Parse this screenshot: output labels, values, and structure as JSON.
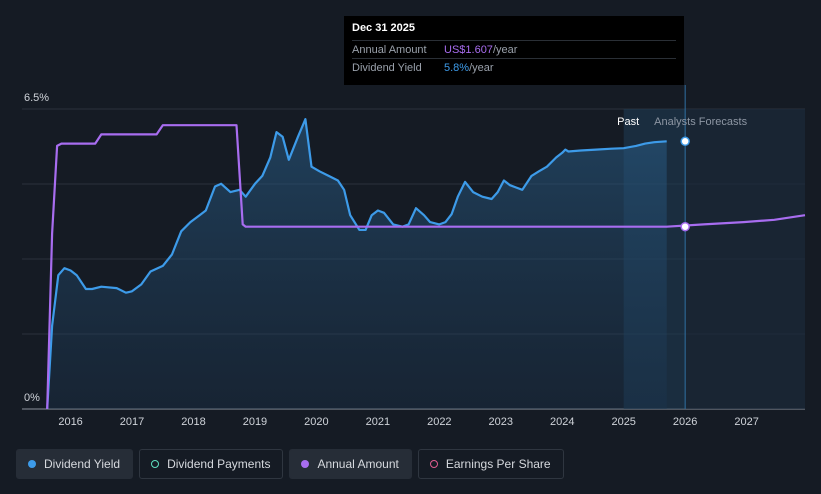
{
  "tooltip": {
    "date": "Dec 31 2025",
    "annual_label": "Annual Amount",
    "annual_value": "US$1.607",
    "annual_unit": "/year",
    "yield_label": "Dividend Yield",
    "yield_value": "5.8%",
    "yield_unit": "/year"
  },
  "regions": {
    "past": "Past",
    "forecast": "Analysts Forecasts"
  },
  "legend": [
    {
      "label": "Dividend Yield",
      "color": "#3d9be9",
      "filled": true,
      "active": true
    },
    {
      "label": "Dividend Payments",
      "color": "#5ee0c0",
      "filled": false,
      "active": false
    },
    {
      "label": "Annual Amount",
      "color": "#a86df0",
      "filled": true,
      "active": true
    },
    {
      "label": "Earnings Per Share",
      "color": "#e05c8f",
      "filled": false,
      "active": false
    }
  ],
  "chart_data": {
    "type": "line",
    "x_ticks": [
      "2016",
      "2017",
      "2018",
      "2019",
      "2020",
      "2021",
      "2022",
      "2023",
      "2024",
      "2025",
      "2026",
      "2027"
    ],
    "y_tick_labels": [
      "0%",
      "6.5%"
    ],
    "ylim": [
      0,
      6.5
    ],
    "xlim": [
      2015.6,
      2027.95
    ],
    "forecast_start": 2026.0,
    "highlight_start": 2025.0,
    "series": [
      {
        "name": "Dividend Yield",
        "color": "#3d9be9",
        "fill": true,
        "points": [
          [
            2015.62,
            0.0
          ],
          [
            2015.7,
            1.8
          ],
          [
            2015.8,
            2.9
          ],
          [
            2015.9,
            3.05
          ],
          [
            2016.0,
            3.0
          ],
          [
            2016.1,
            2.9
          ],
          [
            2016.25,
            2.6
          ],
          [
            2016.35,
            2.6
          ],
          [
            2016.5,
            2.65
          ],
          [
            2016.75,
            2.62
          ],
          [
            2016.9,
            2.52
          ],
          [
            2017.0,
            2.55
          ],
          [
            2017.15,
            2.7
          ],
          [
            2017.3,
            2.98
          ],
          [
            2017.5,
            3.1
          ],
          [
            2017.65,
            3.35
          ],
          [
            2017.8,
            3.85
          ],
          [
            2017.95,
            4.05
          ],
          [
            2018.1,
            4.2
          ],
          [
            2018.2,
            4.3
          ],
          [
            2018.35,
            4.82
          ],
          [
            2018.45,
            4.88
          ],
          [
            2018.6,
            4.7
          ],
          [
            2018.75,
            4.75
          ],
          [
            2018.85,
            4.6
          ],
          [
            2019.0,
            4.88
          ],
          [
            2019.12,
            5.05
          ],
          [
            2019.25,
            5.45
          ],
          [
            2019.35,
            6.0
          ],
          [
            2019.45,
            5.9
          ],
          [
            2019.55,
            5.4
          ],
          [
            2019.7,
            5.9
          ],
          [
            2019.82,
            6.28
          ],
          [
            2019.92,
            5.25
          ],
          [
            2020.05,
            5.15
          ],
          [
            2020.2,
            5.05
          ],
          [
            2020.35,
            4.95
          ],
          [
            2020.45,
            4.75
          ],
          [
            2020.55,
            4.2
          ],
          [
            2020.7,
            3.88
          ],
          [
            2020.8,
            3.88
          ],
          [
            2020.9,
            4.2
          ],
          [
            2021.0,
            4.3
          ],
          [
            2021.1,
            4.25
          ],
          [
            2021.25,
            4.0
          ],
          [
            2021.4,
            3.95
          ],
          [
            2021.5,
            4.0
          ],
          [
            2021.62,
            4.35
          ],
          [
            2021.75,
            4.2
          ],
          [
            2021.85,
            4.05
          ],
          [
            2022.0,
            4.0
          ],
          [
            2022.1,
            4.05
          ],
          [
            2022.2,
            4.22
          ],
          [
            2022.3,
            4.6
          ],
          [
            2022.42,
            4.92
          ],
          [
            2022.55,
            4.7
          ],
          [
            2022.7,
            4.6
          ],
          [
            2022.85,
            4.55
          ],
          [
            2022.95,
            4.7
          ],
          [
            2023.05,
            4.95
          ],
          [
            2023.15,
            4.85
          ],
          [
            2023.25,
            4.8
          ],
          [
            2023.35,
            4.75
          ],
          [
            2023.5,
            5.05
          ],
          [
            2023.62,
            5.15
          ],
          [
            2023.75,
            5.25
          ],
          [
            2023.9,
            5.45
          ],
          [
            2024.0,
            5.55
          ],
          [
            2024.05,
            5.62
          ],
          [
            2024.1,
            5.58
          ],
          [
            2024.3,
            5.6
          ],
          [
            2024.55,
            5.62
          ],
          [
            2024.8,
            5.64
          ],
          [
            2025.0,
            5.65
          ],
          [
            2025.2,
            5.7
          ],
          [
            2025.35,
            5.75
          ],
          [
            2025.5,
            5.78
          ],
          [
            2025.7,
            5.8
          ]
        ]
      },
      {
        "name": "Annual Amount",
        "color": "#a86df0",
        "fill": false,
        "points": [
          [
            2015.62,
            0.0
          ],
          [
            2015.7,
            3.8
          ],
          [
            2015.78,
            5.7
          ],
          [
            2015.85,
            5.75
          ],
          [
            2016.4,
            5.75
          ],
          [
            2016.5,
            5.95
          ],
          [
            2017.4,
            5.95
          ],
          [
            2017.5,
            6.15
          ],
          [
            2018.7,
            6.15
          ],
          [
            2018.8,
            4.0
          ],
          [
            2018.85,
            3.95
          ],
          [
            2025.7,
            3.95
          ],
          [
            2026.3,
            4.0
          ],
          [
            2026.95,
            4.05
          ],
          [
            2027.45,
            4.1
          ],
          [
            2027.95,
            4.2
          ]
        ]
      }
    ],
    "markers": [
      {
        "series": "Dividend Yield",
        "x": 2026.0,
        "y": 5.8
      },
      {
        "series": "Annual Amount",
        "x": 2026.0,
        "y": 3.95
      }
    ]
  }
}
